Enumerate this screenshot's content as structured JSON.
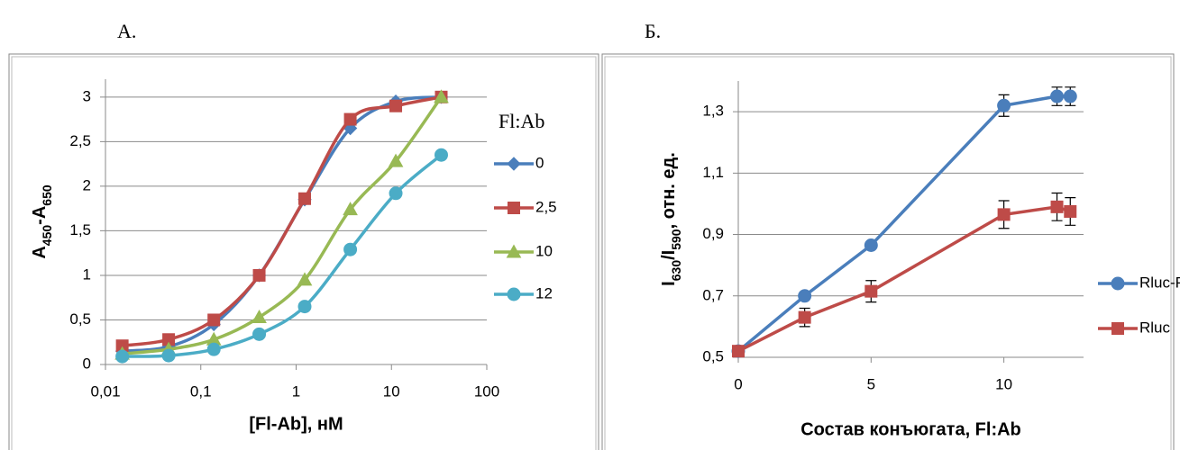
{
  "chart_data": [
    {
      "type": "line",
      "panel_label": "А.",
      "xscale": "log",
      "x": [
        0.015,
        0.046,
        0.137,
        0.41,
        1.23,
        3.7,
        11.1,
        33.3
      ],
      "xlim": [
        0.01,
        100
      ],
      "xticks": [
        {
          "value": 0.01,
          "label": "0,01"
        },
        {
          "value": 0.1,
          "label": "0,1"
        },
        1,
        10,
        100
      ],
      "ylim": [
        0,
        3.2
      ],
      "yticks": [
        0,
        {
          "value": 0.5,
          "label": "0,5"
        },
        1,
        {
          "value": 1.5,
          "label": "1,5"
        },
        2,
        {
          "value": 2.5,
          "label": "2,5"
        },
        3
      ],
      "grid": true,
      "smooth": true,
      "xlabel": "[Fl-Ab], нМ",
      "ylabel": [
        {
          "text": "A"
        },
        {
          "text": "450",
          "sub": true
        },
        {
          "text": "-A"
        },
        {
          "text": "650",
          "sub": true
        }
      ],
      "legend_title": "Fl:Ab",
      "legend": "right",
      "series": [
        {
          "name": "0",
          "color": "#4a7ebb",
          "marker": "diamond",
          "values": [
            0.15,
            0.2,
            0.45,
            1.0,
            1.85,
            2.65,
            2.95,
            3.0
          ]
        },
        {
          "name": "2,5",
          "color": "#be4b48",
          "marker": "square",
          "values": [
            0.21,
            0.28,
            0.5,
            1.0,
            1.86,
            2.75,
            2.9,
            3.0
          ]
        },
        {
          "name": "10",
          "color": "#98b954",
          "marker": "triangle",
          "values": [
            0.12,
            0.17,
            0.28,
            0.53,
            0.95,
            1.74,
            2.28,
            3.0
          ]
        },
        {
          "name": "12",
          "color": "#4bacc6",
          "marker": "circle",
          "values": [
            0.09,
            0.1,
            0.17,
            0.34,
            0.65,
            1.29,
            1.92,
            2.35
          ]
        }
      ]
    },
    {
      "type": "line",
      "panel_label": "Б.",
      "xscale": "linear",
      "x": [
        0,
        2.5,
        5,
        10,
        12,
        12.5
      ],
      "xlim": [
        0,
        13
      ],
      "xticks": [
        0,
        5,
        10
      ],
      "ylim": [
        0.5,
        1.4
      ],
      "yticks": [
        {
          "value": 0.5,
          "label": "0,5"
        },
        {
          "value": 0.7,
          "label": "0,7"
        },
        {
          "value": 0.9,
          "label": "0,9"
        },
        {
          "value": 1.1,
          "label": "1,1"
        },
        {
          "value": 1.3,
          "label": "1,3"
        }
      ],
      "grid": true,
      "smooth": false,
      "xlabel": "Состав конъюгата, Fl:Ab",
      "ylabel": [
        {
          "text": "I"
        },
        {
          "text": "630",
          "sub": true
        },
        {
          "text": "/I"
        },
        {
          "text": "590",
          "sub": true
        },
        {
          "text": ", отн. ед."
        }
      ],
      "legend": "right",
      "series": [
        {
          "name": "Rluc-Pg",
          "color": "#4a7ebb",
          "marker": "circle",
          "values": [
            0.52,
            0.7,
            0.865,
            1.32,
            1.35,
            1.35
          ],
          "errors": [
            0,
            0.01,
            0.01,
            0.035,
            0.03,
            0.03
          ]
        },
        {
          "name": "Rluc",
          "color": "#be4b48",
          "marker": "square",
          "values": [
            0.52,
            0.63,
            0.715,
            0.965,
            0.99,
            0.975
          ],
          "errors": [
            0,
            0.03,
            0.035,
            0.045,
            0.045,
            0.045
          ]
        }
      ]
    }
  ]
}
